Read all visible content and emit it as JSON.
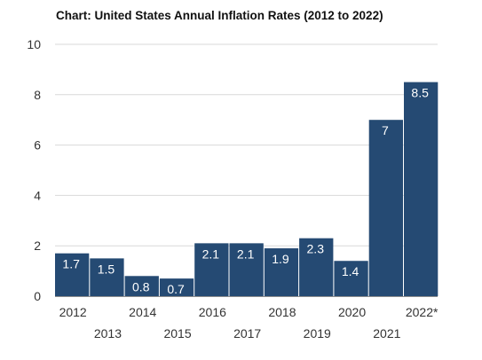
{
  "chart_data": {
    "type": "bar",
    "title": "Chart: United States Annual Inflation Rates (2012 to 2022)",
    "categories": [
      "2012",
      "2013",
      "2014",
      "2015",
      "2016",
      "2017",
      "2018",
      "2019",
      "2020",
      "2021",
      "2022*"
    ],
    "values": [
      1.7,
      1.5,
      0.8,
      0.7,
      2.1,
      2.1,
      1.9,
      2.3,
      1.4,
      7,
      8.5
    ],
    "data_labels": [
      "1.7",
      "1.5",
      "0.8",
      "0.7",
      "2.1",
      "2.1",
      "1.9",
      "2.3",
      "1.4",
      "7",
      "8.5"
    ],
    "y_ticks": [
      "0",
      "2",
      "4",
      "6",
      "8",
      "10"
    ],
    "ylim": [
      0,
      10
    ],
    "xlabel": "",
    "ylabel": "",
    "grid": true,
    "legend": "none",
    "colors": {
      "bar": "#254a73",
      "grid": "#d9d9d9",
      "axis": "#8c8c8c"
    }
  }
}
